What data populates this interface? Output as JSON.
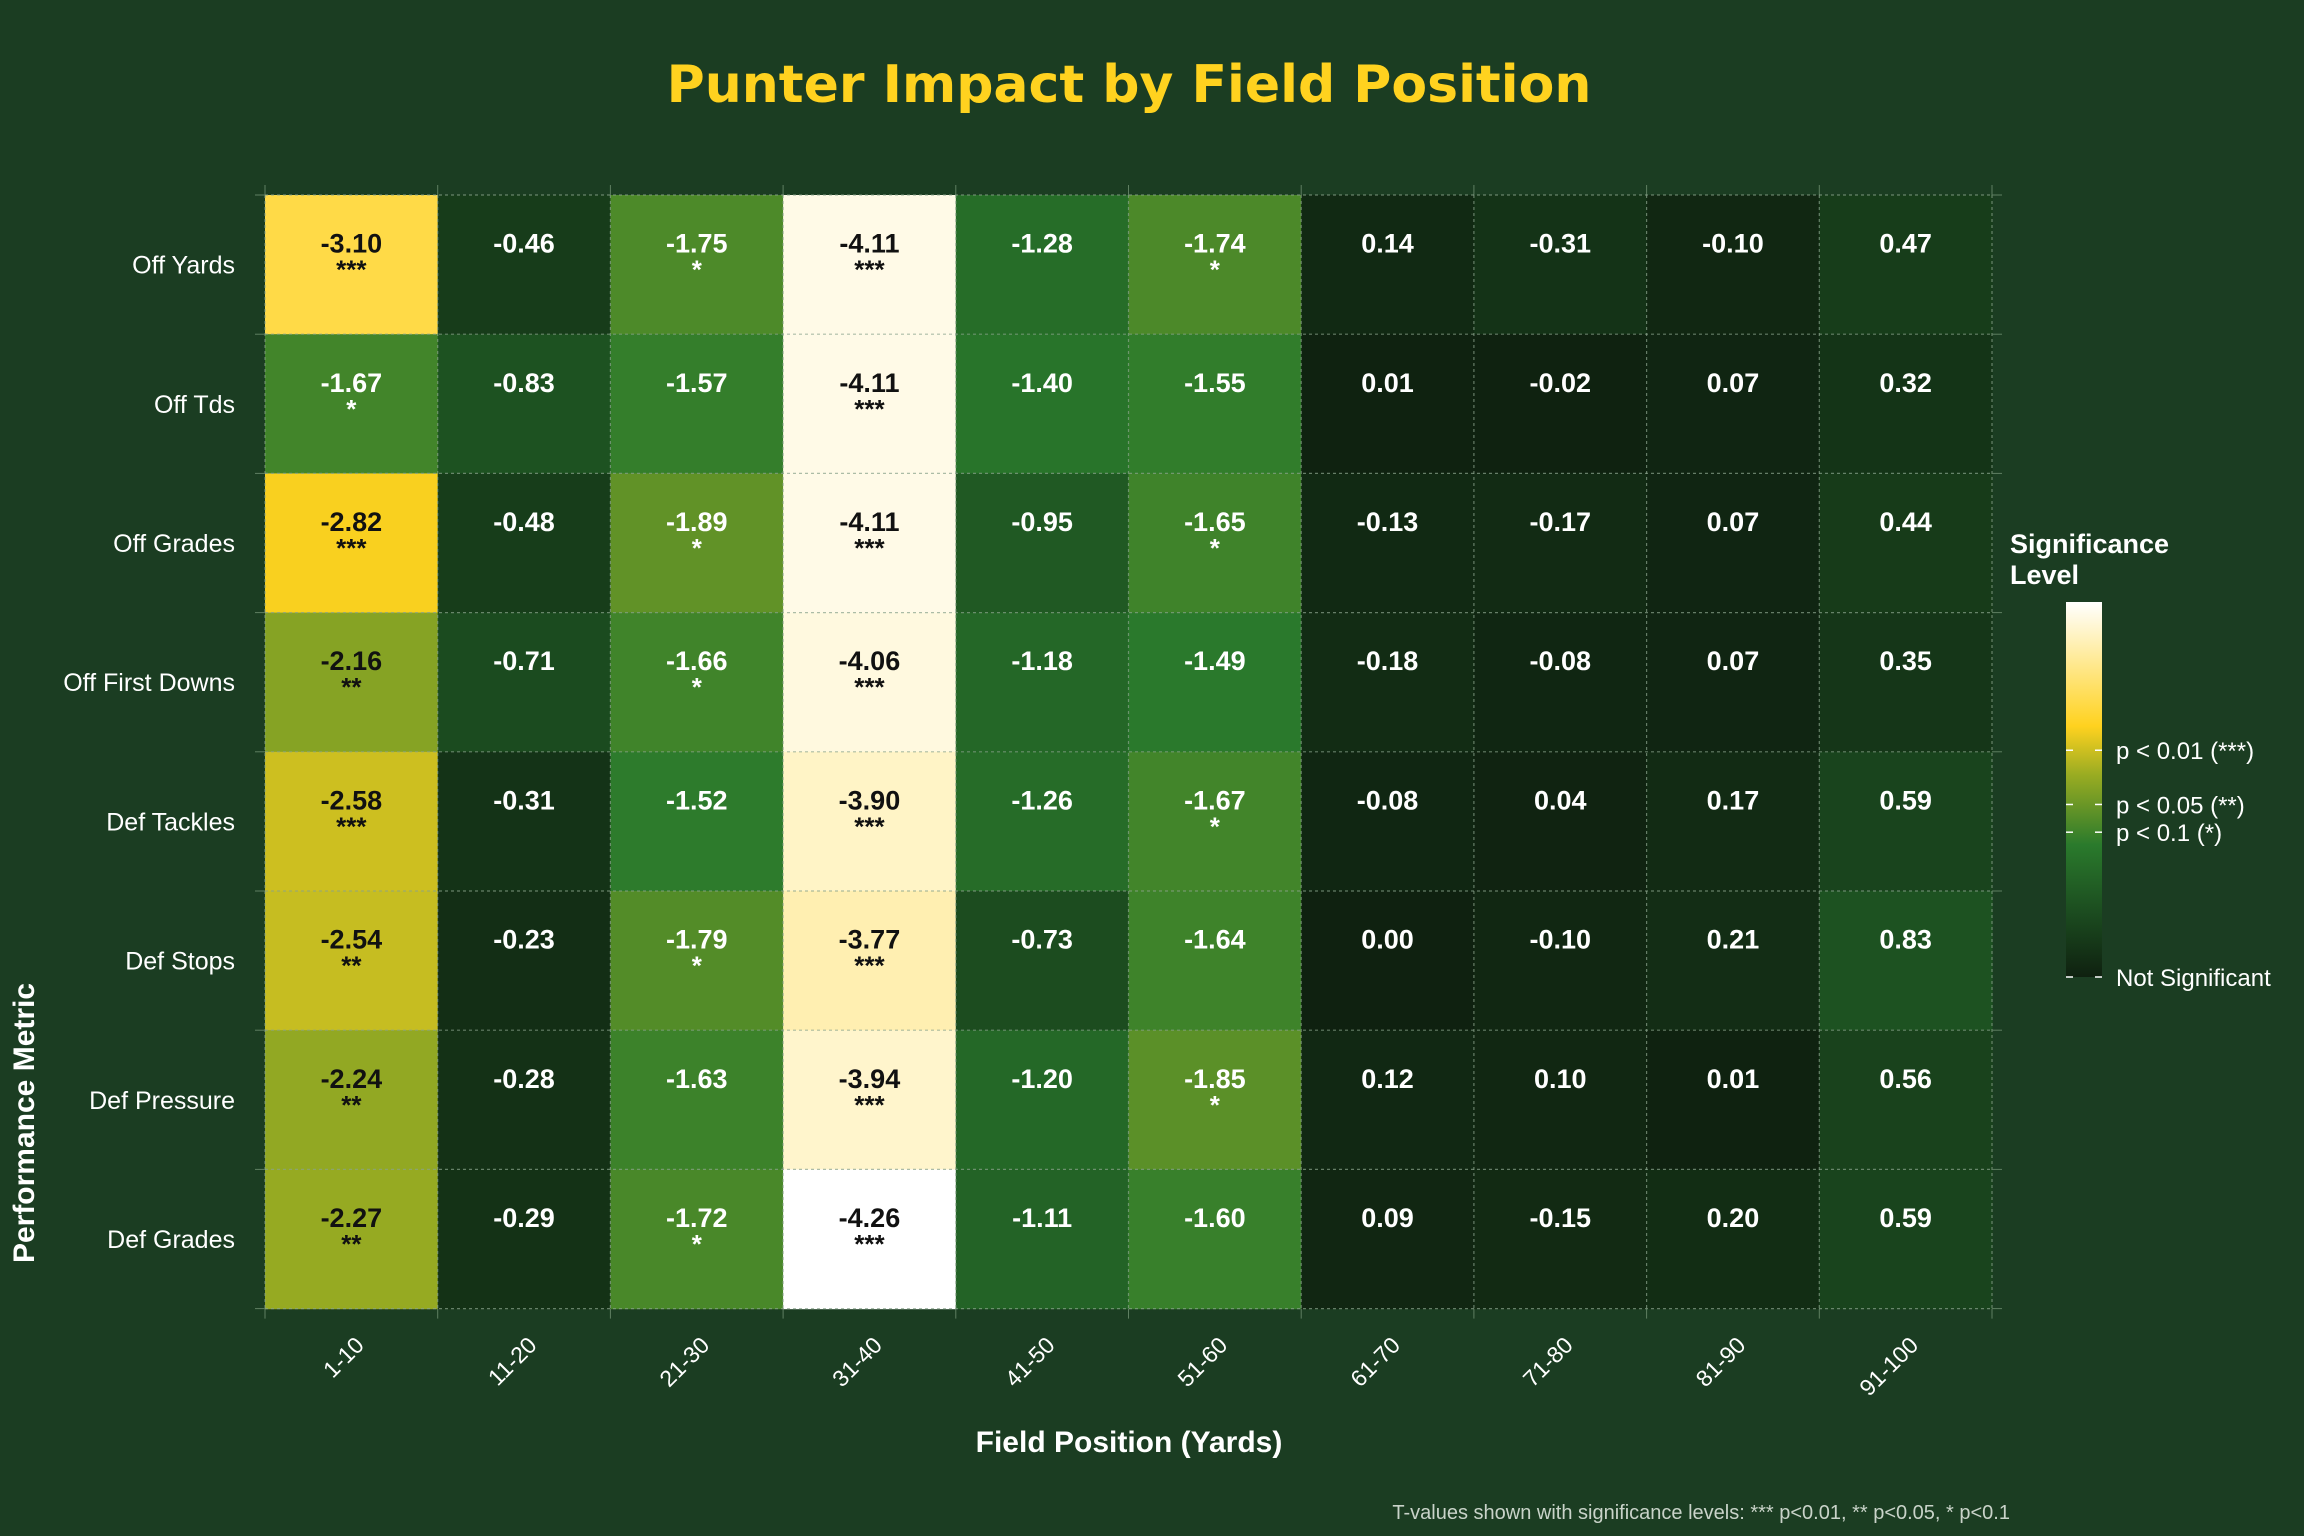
{
  "chart_data": {
    "type": "heatmap",
    "title": "Punter Impact by Field Position",
    "xlabel": "Field Position (Yards)",
    "ylabel": "Performance Metric",
    "caption": "T-values shown with significance levels: *** p<0.01, ** p<0.05, * p<0.1",
    "x_categories": [
      "1-10",
      "11-20",
      "21-30",
      "31-40",
      "41-50",
      "51-60",
      "61-70",
      "71-80",
      "81-90",
      "91-100"
    ],
    "y_categories": [
      "Off Yards",
      "Off Tds",
      "Off Grades",
      "Off First Downs",
      "Def Tackles",
      "Def Stops",
      "Def Pressure",
      "Def Grades"
    ],
    "values": [
      [
        -3.1,
        -0.46,
        -1.75,
        -4.11,
        -1.28,
        -1.74,
        0.14,
        -0.31,
        -0.1,
        0.47
      ],
      [
        -1.67,
        -0.83,
        -1.57,
        -4.11,
        -1.4,
        -1.55,
        0.01,
        -0.02,
        0.07,
        0.32
      ],
      [
        -2.82,
        -0.48,
        -1.89,
        -4.11,
        -0.95,
        -1.65,
        -0.13,
        -0.17,
        0.07,
        0.44
      ],
      [
        -2.16,
        -0.71,
        -1.66,
        -4.06,
        -1.18,
        -1.49,
        -0.18,
        -0.08,
        0.07,
        0.35
      ],
      [
        -2.58,
        -0.31,
        -1.52,
        -3.9,
        -1.26,
        -1.67,
        -0.08,
        0.04,
        0.17,
        0.59
      ],
      [
        -2.54,
        -0.23,
        -1.79,
        -3.77,
        -0.73,
        -1.64,
        0.0,
        -0.1,
        0.21,
        0.83
      ],
      [
        -2.24,
        -0.28,
        -1.63,
        -3.94,
        -1.2,
        -1.85,
        0.12,
        0.1,
        0.01,
        0.56
      ],
      [
        -2.27,
        -0.29,
        -1.72,
        -4.26,
        -1.11,
        -1.6,
        0.09,
        -0.15,
        0.2,
        0.59
      ]
    ],
    "significance": [
      [
        "***",
        "",
        "*",
        "***",
        "",
        "*",
        "",
        "",
        "",
        ""
      ],
      [
        "*",
        "",
        "",
        "***",
        "",
        "",
        "",
        "",
        "",
        ""
      ],
      [
        "***",
        "",
        "*",
        "***",
        "",
        "*",
        "",
        "",
        "",
        ""
      ],
      [
        "**",
        "",
        "*",
        "***",
        "",
        "",
        "",
        "",
        "",
        ""
      ],
      [
        "***",
        "",
        "",
        "***",
        "",
        "*",
        "",
        "",
        "",
        ""
      ],
      [
        "**",
        "",
        "*",
        "***",
        "",
        "",
        "",
        "",
        "",
        ""
      ],
      [
        "**",
        "",
        "",
        "***",
        "",
        "*",
        "",
        "",
        "",
        ""
      ],
      [
        "**",
        "",
        "*",
        "***",
        "",
        "",
        "",
        "",
        "",
        ""
      ]
    ],
    "legend": {
      "title_line1": "Significance",
      "title_line2": "Level",
      "placement": "right",
      "labels": [
        "p < 0.01 (***)",
        "p < 0.05 (**)",
        "p < 0.1 (*)",
        "Not Significant"
      ],
      "label_values": [
        2.576,
        1.96,
        1.645,
        0
      ],
      "range": [
        0,
        4.26
      ]
    },
    "colors": {
      "background": "#1b3d22",
      "title": "#ffd21f",
      "text": "#ffffff",
      "scale": [
        "#0f2110",
        "#1b4a1f",
        "#2a7a2c",
        "#9aac22",
        "#ffd21f",
        "#ffffff"
      ]
    },
    "grid": true
  }
}
